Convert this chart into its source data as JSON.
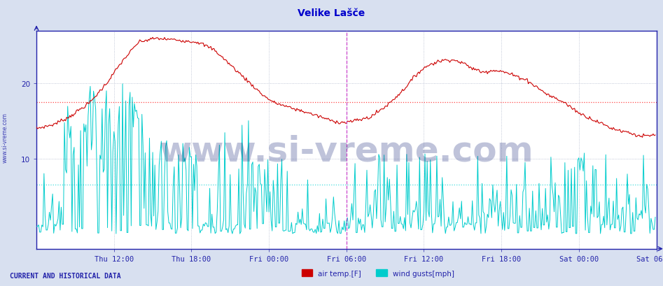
{
  "title": "Velike Lašče",
  "title_color": "#0000cc",
  "title_fontsize": 10,
  "bg_color": "#d8e0f0",
  "plot_bg_color": "#ffffff",
  "outer_bg_color": "#d8e0f0",
  "grid_color": "#b0b8cc",
  "axis_color": "#2222aa",
  "tick_color": "#2222aa",
  "tick_fontsize": 7.5,
  "watermark": "www.si-vreme.com",
  "watermark_color": "#1a2a7a",
  "watermark_alpha": 0.28,
  "watermark_fontsize": 36,
  "side_text": "www.si-vreme.com",
  "side_text_color": "#2222aa",
  "side_text_fontsize": 5.5,
  "xlabel_bottom": "CURRENT AND HISTORICAL DATA",
  "xlabel_color": "#2222aa",
  "xlabel_fontsize": 7,
  "legend_labels": [
    "air temp.[F]",
    "wind gusts[mph]"
  ],
  "legend_colors": [
    "#cc0000",
    "#00cccc"
  ],
  "line_color_red": "#cc0000",
  "line_color_cyan": "#00cccc",
  "hline_red_y": 17.5,
  "hline_cyan_y": 6.5,
  "hline_red_color": "#ff4444",
  "hline_cyan_color": "#44dddd",
  "vline_color": "#cc44cc",
  "vline_x": 288,
  "ylim": [
    -2,
    27
  ],
  "yticks": [
    10,
    20
  ],
  "n_points": 576,
  "x_tick_positions": [
    72,
    144,
    216,
    288,
    360,
    432,
    504,
    576
  ],
  "x_tick_labels": [
    "Thu 12:00",
    "Thu 18:00",
    "Fri 00:00",
    "Fri 06:00",
    "Fri 12:00",
    "Fri 18:00",
    "Sat 00:00",
    "Sat 06:00"
  ]
}
